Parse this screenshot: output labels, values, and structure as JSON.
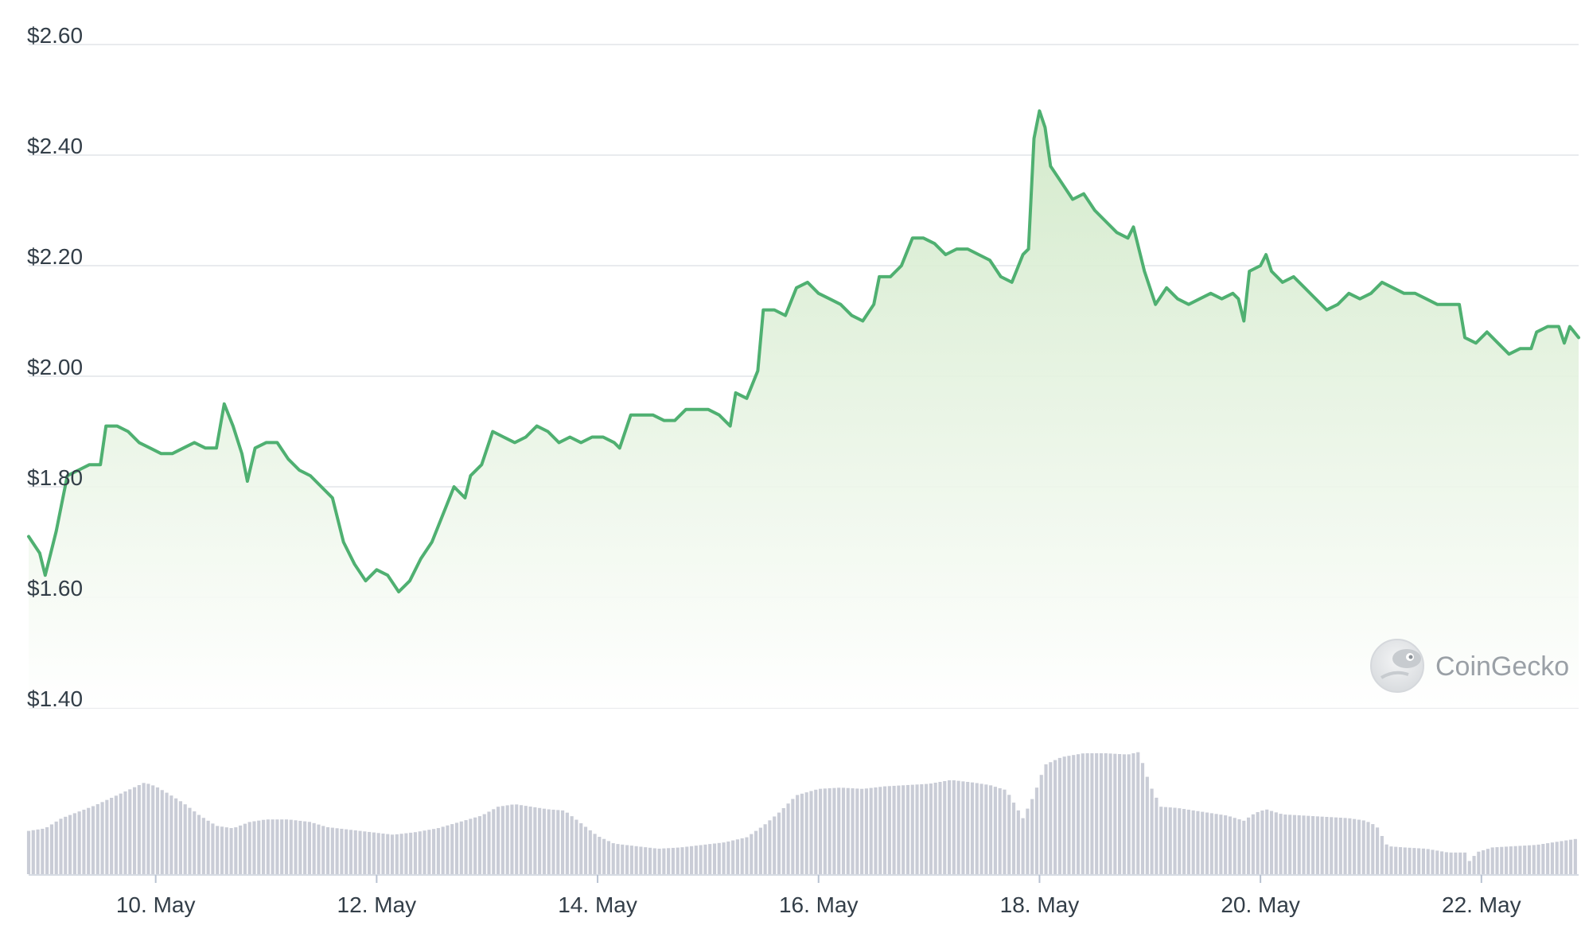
{
  "watermark": {
    "text": "CoinGecko"
  },
  "colors": {
    "line": "#4fb071",
    "area_top": "#cfe8c6",
    "area_bottom": "#ffffff",
    "volume": "#c9ccd6",
    "grid": "#e9ebee",
    "axis_text": "#333e48"
  },
  "chart_data": {
    "type": "line",
    "price_axis": {
      "range": [
        1.4,
        2.6
      ],
      "ticks": [
        1.4,
        1.6,
        1.8,
        2.0,
        2.2,
        2.4,
        2.6
      ],
      "tick_labels": [
        "$1.40",
        "$1.60",
        "$1.80",
        "$2.00",
        "$2.20",
        "$2.40",
        "$2.60"
      ]
    },
    "x_axis": {
      "range": [
        8.85,
        22.88
      ],
      "ticks": [
        10,
        12,
        14,
        16,
        18,
        20,
        22
      ],
      "tick_labels": [
        "10. May",
        "12. May",
        "14. May",
        "16. May",
        "18. May",
        "20. May",
        "22. May"
      ]
    },
    "grid": true,
    "series": [
      {
        "points": [
          [
            8.85,
            1.71
          ],
          [
            8.95,
            1.68
          ],
          [
            9.0,
            1.64
          ],
          [
            9.05,
            1.68
          ],
          [
            9.1,
            1.72
          ],
          [
            9.2,
            1.82
          ],
          [
            9.3,
            1.83
          ],
          [
            9.4,
            1.84
          ],
          [
            9.5,
            1.84
          ],
          [
            9.55,
            1.91
          ],
          [
            9.65,
            1.91
          ],
          [
            9.75,
            1.9
          ],
          [
            9.85,
            1.88
          ],
          [
            9.95,
            1.87
          ],
          [
            10.05,
            1.86
          ],
          [
            10.15,
            1.86
          ],
          [
            10.25,
            1.87
          ],
          [
            10.35,
            1.88
          ],
          [
            10.45,
            1.87
          ],
          [
            10.55,
            1.87
          ],
          [
            10.62,
            1.95
          ],
          [
            10.7,
            1.91
          ],
          [
            10.78,
            1.86
          ],
          [
            10.83,
            1.81
          ],
          [
            10.9,
            1.87
          ],
          [
            11.0,
            1.88
          ],
          [
            11.1,
            1.88
          ],
          [
            11.2,
            1.85
          ],
          [
            11.3,
            1.83
          ],
          [
            11.4,
            1.82
          ],
          [
            11.5,
            1.8
          ],
          [
            11.6,
            1.78
          ],
          [
            11.7,
            1.7
          ],
          [
            11.8,
            1.66
          ],
          [
            11.9,
            1.63
          ],
          [
            12.0,
            1.65
          ],
          [
            12.1,
            1.64
          ],
          [
            12.2,
            1.61
          ],
          [
            12.3,
            1.63
          ],
          [
            12.4,
            1.67
          ],
          [
            12.5,
            1.7
          ],
          [
            12.6,
            1.75
          ],
          [
            12.7,
            1.8
          ],
          [
            12.8,
            1.78
          ],
          [
            12.85,
            1.82
          ],
          [
            12.95,
            1.84
          ],
          [
            13.05,
            1.9
          ],
          [
            13.15,
            1.89
          ],
          [
            13.25,
            1.88
          ],
          [
            13.35,
            1.89
          ],
          [
            13.45,
            1.91
          ],
          [
            13.55,
            1.9
          ],
          [
            13.65,
            1.88
          ],
          [
            13.75,
            1.89
          ],
          [
            13.85,
            1.88
          ],
          [
            13.95,
            1.89
          ],
          [
            14.05,
            1.89
          ],
          [
            14.15,
            1.88
          ],
          [
            14.2,
            1.87
          ],
          [
            14.3,
            1.93
          ],
          [
            14.4,
            1.93
          ],
          [
            14.5,
            1.93
          ],
          [
            14.6,
            1.92
          ],
          [
            14.7,
            1.92
          ],
          [
            14.8,
            1.94
          ],
          [
            14.9,
            1.94
          ],
          [
            15.0,
            1.94
          ],
          [
            15.1,
            1.93
          ],
          [
            15.2,
            1.91
          ],
          [
            15.25,
            1.97
          ],
          [
            15.35,
            1.96
          ],
          [
            15.45,
            2.01
          ],
          [
            15.5,
            2.12
          ],
          [
            15.6,
            2.12
          ],
          [
            15.7,
            2.11
          ],
          [
            15.8,
            2.16
          ],
          [
            15.9,
            2.17
          ],
          [
            16.0,
            2.15
          ],
          [
            16.1,
            2.14
          ],
          [
            16.2,
            2.13
          ],
          [
            16.3,
            2.11
          ],
          [
            16.4,
            2.1
          ],
          [
            16.5,
            2.13
          ],
          [
            16.55,
            2.18
          ],
          [
            16.65,
            2.18
          ],
          [
            16.75,
            2.2
          ],
          [
            16.85,
            2.25
          ],
          [
            16.95,
            2.25
          ],
          [
            17.05,
            2.24
          ],
          [
            17.15,
            2.22
          ],
          [
            17.25,
            2.23
          ],
          [
            17.35,
            2.23
          ],
          [
            17.45,
            2.22
          ],
          [
            17.55,
            2.21
          ],
          [
            17.65,
            2.18
          ],
          [
            17.75,
            2.17
          ],
          [
            17.85,
            2.22
          ],
          [
            17.9,
            2.23
          ],
          [
            17.95,
            2.43
          ],
          [
            18.0,
            2.48
          ],
          [
            18.05,
            2.45
          ],
          [
            18.1,
            2.38
          ],
          [
            18.2,
            2.35
          ],
          [
            18.3,
            2.32
          ],
          [
            18.4,
            2.33
          ],
          [
            18.5,
            2.3
          ],
          [
            18.6,
            2.28
          ],
          [
            18.7,
            2.26
          ],
          [
            18.8,
            2.25
          ],
          [
            18.85,
            2.27
          ],
          [
            18.95,
            2.19
          ],
          [
            19.05,
            2.13
          ],
          [
            19.15,
            2.16
          ],
          [
            19.25,
            2.14
          ],
          [
            19.35,
            2.13
          ],
          [
            19.45,
            2.14
          ],
          [
            19.55,
            2.15
          ],
          [
            19.65,
            2.14
          ],
          [
            19.75,
            2.15
          ],
          [
            19.8,
            2.14
          ],
          [
            19.85,
            2.1
          ],
          [
            19.9,
            2.19
          ],
          [
            20.0,
            2.2
          ],
          [
            20.05,
            2.22
          ],
          [
            20.1,
            2.19
          ],
          [
            20.2,
            2.17
          ],
          [
            20.3,
            2.18
          ],
          [
            20.4,
            2.16
          ],
          [
            20.5,
            2.14
          ],
          [
            20.6,
            2.12
          ],
          [
            20.7,
            2.13
          ],
          [
            20.8,
            2.15
          ],
          [
            20.9,
            2.14
          ],
          [
            21.0,
            2.15
          ],
          [
            21.1,
            2.17
          ],
          [
            21.2,
            2.16
          ],
          [
            21.3,
            2.15
          ],
          [
            21.4,
            2.15
          ],
          [
            21.5,
            2.14
          ],
          [
            21.6,
            2.13
          ],
          [
            21.7,
            2.13
          ],
          [
            21.8,
            2.13
          ],
          [
            21.85,
            2.07
          ],
          [
            21.95,
            2.06
          ],
          [
            22.05,
            2.08
          ],
          [
            22.15,
            2.06
          ],
          [
            22.25,
            2.04
          ],
          [
            22.35,
            2.05
          ],
          [
            22.45,
            2.05
          ],
          [
            22.5,
            2.08
          ],
          [
            22.6,
            2.09
          ],
          [
            22.7,
            2.09
          ],
          [
            22.75,
            2.06
          ],
          [
            22.8,
            2.09
          ],
          [
            22.88,
            2.07
          ]
        ]
      }
    ],
    "volume": {
      "description_units": "relative",
      "points": [
        [
          8.85,
          0.34
        ],
        [
          9.0,
          0.36
        ],
        [
          9.15,
          0.44
        ],
        [
          9.3,
          0.49
        ],
        [
          9.45,
          0.54
        ],
        [
          9.6,
          0.6
        ],
        [
          9.75,
          0.66
        ],
        [
          9.85,
          0.7
        ],
        [
          9.9,
          0.72
        ],
        [
          10.0,
          0.69
        ],
        [
          10.1,
          0.64
        ],
        [
          10.25,
          0.56
        ],
        [
          10.4,
          0.46
        ],
        [
          10.55,
          0.38
        ],
        [
          10.7,
          0.36
        ],
        [
          10.85,
          0.41
        ],
        [
          11.0,
          0.43
        ],
        [
          11.2,
          0.43
        ],
        [
          11.4,
          0.41
        ],
        [
          11.55,
          0.37
        ],
        [
          11.75,
          0.35
        ],
        [
          11.95,
          0.33
        ],
        [
          12.15,
          0.31
        ],
        [
          12.35,
          0.33
        ],
        [
          12.55,
          0.36
        ],
        [
          12.75,
          0.41
        ],
        [
          12.95,
          0.46
        ],
        [
          13.1,
          0.53
        ],
        [
          13.25,
          0.55
        ],
        [
          13.4,
          0.53
        ],
        [
          13.55,
          0.51
        ],
        [
          13.7,
          0.5
        ],
        [
          13.85,
          0.4
        ],
        [
          14.0,
          0.3
        ],
        [
          14.15,
          0.24
        ],
        [
          14.35,
          0.22
        ],
        [
          14.55,
          0.2
        ],
        [
          14.75,
          0.21
        ],
        [
          14.95,
          0.23
        ],
        [
          15.15,
          0.25
        ],
        [
          15.35,
          0.29
        ],
        [
          15.5,
          0.38
        ],
        [
          15.65,
          0.49
        ],
        [
          15.8,
          0.62
        ],
        [
          16.0,
          0.67
        ],
        [
          16.2,
          0.68
        ],
        [
          16.4,
          0.67
        ],
        [
          16.6,
          0.69
        ],
        [
          16.8,
          0.7
        ],
        [
          17.0,
          0.71
        ],
        [
          17.2,
          0.74
        ],
        [
          17.4,
          0.72
        ],
        [
          17.55,
          0.7
        ],
        [
          17.7,
          0.66
        ],
        [
          17.85,
          0.44
        ],
        [
          17.95,
          0.62
        ],
        [
          18.05,
          0.86
        ],
        [
          18.2,
          0.92
        ],
        [
          18.4,
          0.95
        ],
        [
          18.6,
          0.95
        ],
        [
          18.8,
          0.94
        ],
        [
          18.9,
          0.96
        ],
        [
          19.0,
          0.7
        ],
        [
          19.1,
          0.53
        ],
        [
          19.25,
          0.52
        ],
        [
          19.4,
          0.5
        ],
        [
          19.55,
          0.48
        ],
        [
          19.7,
          0.46
        ],
        [
          19.85,
          0.42
        ],
        [
          19.95,
          0.48
        ],
        [
          20.05,
          0.51
        ],
        [
          20.2,
          0.47
        ],
        [
          20.4,
          0.46
        ],
        [
          20.6,
          0.45
        ],
        [
          20.8,
          0.44
        ],
        [
          20.95,
          0.42
        ],
        [
          21.05,
          0.38
        ],
        [
          21.15,
          0.22
        ],
        [
          21.3,
          0.21
        ],
        [
          21.5,
          0.2
        ],
        [
          21.7,
          0.17
        ],
        [
          21.85,
          0.17
        ],
        [
          21.9,
          0.09
        ],
        [
          21.95,
          0.17
        ],
        [
          22.1,
          0.21
        ],
        [
          22.3,
          0.22
        ],
        [
          22.5,
          0.23
        ],
        [
          22.65,
          0.25
        ],
        [
          22.88,
          0.28
        ]
      ]
    }
  }
}
